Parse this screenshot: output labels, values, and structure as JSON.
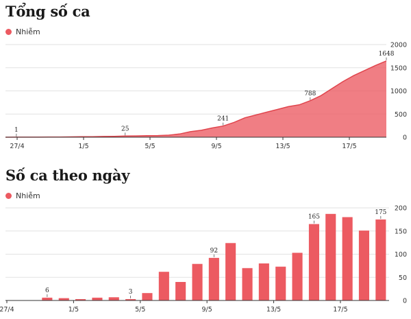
{
  "chart_data": [
    {
      "type": "area",
      "title": "Tổng số ca",
      "series": [
        {
          "name": "Nhiễm",
          "color": "#ec5a61",
          "values": [
            0,
            1,
            1,
            2,
            3,
            5,
            7,
            10,
            12,
            16,
            20,
            25,
            28,
            32,
            36,
            45,
            70,
            120,
            150,
            200,
            241,
            320,
            420,
            480,
            540,
            600,
            660,
            700,
            788,
            900,
            1050,
            1200,
            1330,
            1440,
            1550,
            1648
          ]
        }
      ],
      "x_tick_labels": [
        "27/4",
        "1/5",
        "5/5",
        "9/5",
        "13/5",
        "17/5"
      ],
      "ylim": [
        0,
        2000
      ],
      "y_ticks": [
        "0",
        "500",
        "1000",
        "1500",
        "2000"
      ],
      "data_labels": [
        {
          "index": 1,
          "text": "1"
        },
        {
          "index": 11,
          "text": "25"
        },
        {
          "index": 20,
          "text": "241"
        },
        {
          "index": 28,
          "text": "788"
        },
        {
          "index": 35,
          "text": "1648"
        }
      ],
      "grid": true,
      "legend_position": "top-left"
    },
    {
      "type": "bar",
      "title": "Số ca theo ngày",
      "series": [
        {
          "name": "Nhiễm",
          "color": "#ec5a61",
          "values": [
            0,
            0,
            6,
            5,
            3,
            6,
            7,
            3,
            16,
            62,
            40,
            79,
            92,
            124,
            70,
            80,
            73,
            103,
            165,
            187,
            180,
            151,
            175
          ]
        }
      ],
      "x_tick_labels": [
        "27/4",
        "1/5",
        "5/5",
        "9/5",
        "13/5",
        "17/5"
      ],
      "ylim": [
        0,
        200
      ],
      "y_ticks": [
        "0",
        "50",
        "100",
        "150",
        "200"
      ],
      "data_labels": [
        {
          "index": 2,
          "text": "6"
        },
        {
          "index": 7,
          "text": "3"
        },
        {
          "index": 12,
          "text": "92"
        },
        {
          "index": 18,
          "text": "165"
        },
        {
          "index": 22,
          "text": "175"
        }
      ],
      "grid": true,
      "legend_position": "top-left"
    }
  ]
}
